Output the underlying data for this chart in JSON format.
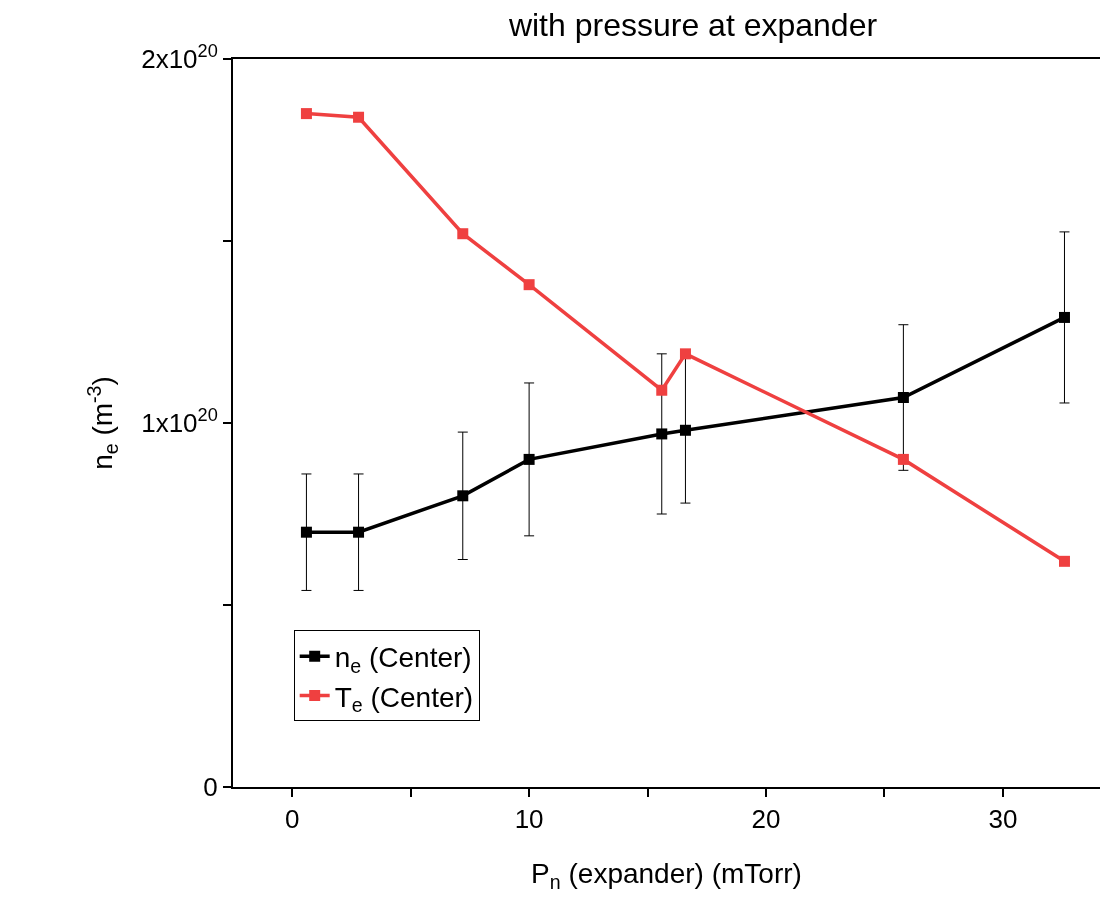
{
  "chart_data": {
    "type": "line",
    "title": "with pressure at expander",
    "xlabel": "P$_{n}$ (expander) (mTorr)",
    "ylabel": "n$_{e}$ (m$^{-3}$)",
    "x": [
      0.6,
      2.8,
      7.2,
      10.0,
      15.6,
      16.6,
      25.8,
      32.6
    ],
    "series": [
      {
        "name": "n$_{e}$ (Center)",
        "color": "#000000",
        "values": [
          7e+19,
          7e+19,
          8e+19,
          9e+19,
          9.7e+19,
          9.8e+19,
          1.07e+20,
          1.29e+20
        ],
        "errors": [
          1.6e+19,
          1.6e+19,
          1.75e+19,
          2.1e+19,
          2.2e+19,
          2e+19,
          2e+19,
          2.35e+19
        ]
      },
      {
        "name": "T$_{e}$ (Center)",
        "color": "#ef4040",
        "values": [
          1.85e+20,
          1.84e+20,
          1.52e+20,
          1.38e+20,
          1.09e+20,
          1.19e+20,
          9e+19,
          6.2e+19
        ]
      }
    ],
    "xlim": [
      -2.5,
      34.1
    ],
    "ylim": [
      0,
      2e+20
    ],
    "xticks": [
      0,
      {
        "value": 5,
        "label": null
      },
      10,
      {
        "value": 15,
        "label": null
      },
      20,
      {
        "value": 25,
        "label": null
      },
      30
    ],
    "yticks": [
      0,
      {
        "value": 5e+19,
        "label": null
      },
      {
        "value": 1e+20,
        "label": "1x10$^{20}$"
      },
      {
        "value": 1.5e+20,
        "label": null
      },
      {
        "value": 2e+20,
        "label": "2x10$^{20}$"
      }
    ],
    "grid": false,
    "legend": "bottom left",
    "marker": "square",
    "line_style": "solid"
  }
}
